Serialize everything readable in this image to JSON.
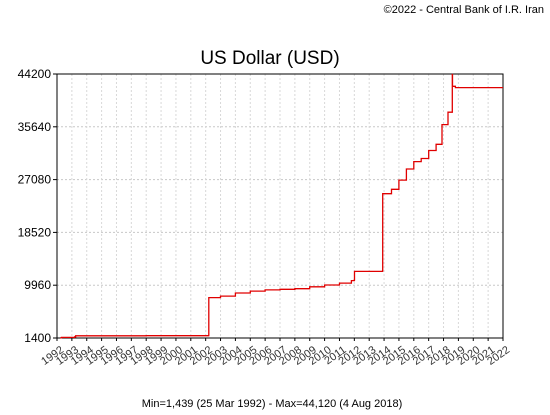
{
  "copyright": "©2022 - Central Bank of I.R. Iran",
  "chart_data": {
    "type": "line",
    "title": "US Dollar (USD)",
    "xlabel": "",
    "ylabel": "",
    "x_ticks": [
      "1992",
      "1993",
      "1994",
      "1995",
      "1996",
      "1997",
      "1998",
      "1999",
      "2000",
      "2001",
      "2002",
      "2003",
      "2004",
      "2005",
      "2006",
      "2007",
      "2008",
      "2009",
      "2010",
      "2011",
      "2012",
      "2013",
      "2014",
      "2015",
      "2016",
      "2017",
      "2018",
      "2019",
      "2020",
      "2021",
      "2022"
    ],
    "y_ticks": [
      1400,
      9960,
      18520,
      27080,
      35640,
      44200
    ],
    "xlim": [
      1992,
      2022
    ],
    "ylim": [
      1400,
      44200
    ],
    "grid": true,
    "legend": "none",
    "series": [
      {
        "color": "#e00000",
        "x": [
          1992.23,
          1992.3,
          1993.2,
          1993.25,
          1998.0,
          2002.2,
          2002.21,
          2003.0,
          2004.0,
          2005.0,
          2006.0,
          2007.0,
          2008.0,
          2009.0,
          2010.0,
          2011.0,
          2011.8,
          2012.0,
          2012.01,
          2013.9,
          2013.91,
          2014.5,
          2015.0,
          2015.5,
          2016.0,
          2016.5,
          2017.0,
          2017.5,
          2017.9,
          2018.3,
          2018.59,
          2018.6,
          2018.8,
          2022.0
        ],
        "y": [
          1439,
          1500,
          1600,
          1750,
          1770,
          1790,
          7950,
          8200,
          8700,
          9000,
          9200,
          9300,
          9400,
          9700,
          10000,
          10300,
          10700,
          10800,
          12200,
          12300,
          24800,
          25500,
          27000,
          28800,
          30000,
          30500,
          31800,
          32800,
          36000,
          38000,
          44120,
          42200,
          42000,
          42000
        ]
      }
    ],
    "footer": "Min=1,439 (25 Mar 1992) - Max=44,120 (4 Aug 2018)"
  }
}
